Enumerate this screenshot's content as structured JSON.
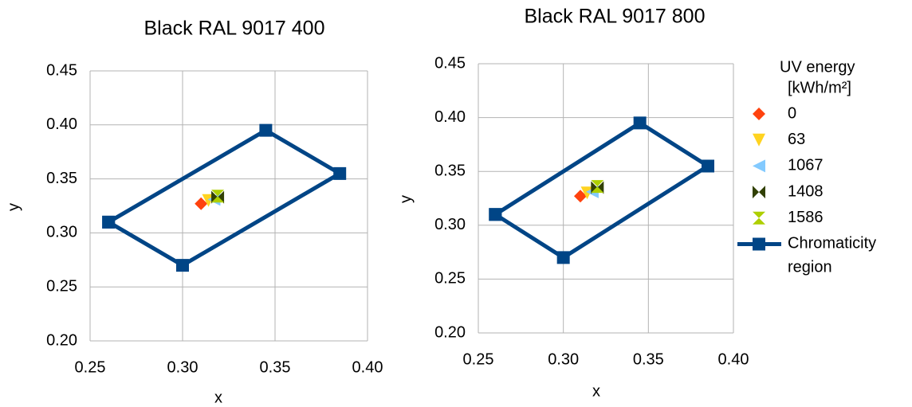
{
  "chart_data": [
    {
      "type": "scatter",
      "title": "Black RAL 9017 400",
      "xlabel": "x",
      "ylabel": "y",
      "xlim": [
        0.25,
        0.4
      ],
      "ylim": [
        0.2,
        0.45
      ],
      "xticks": [
        0.25,
        {
          "value": 0.3,
          "label": "0.30"
        },
        0.35,
        {
          "value": 0.4,
          "label": "0.40"
        }
      ],
      "yticks": [
        {
          "value": 0.2,
          "label": "0.20"
        },
        0.25,
        {
          "value": 0.3,
          "label": "0.30"
        },
        0.35,
        {
          "value": 0.4,
          "label": "0.40"
        },
        0.45
      ],
      "grid": true,
      "series": [
        {
          "color": "#ff420e",
          "marker": "diamond",
          "x": [
            0.31
          ],
          "values": [
            0.327
          ]
        },
        {
          "color": "#ffd320",
          "marker": "triangle-down",
          "x": [
            0.314
          ],
          "values": [
            0.33
          ]
        },
        {
          "color": "#83caff",
          "marker": "triangle-left",
          "x": [
            0.317
          ],
          "values": [
            0.331
          ]
        },
        {
          "color": "#314004",
          "marker": "bowtie",
          "x": [
            0.319
          ],
          "values": [
            0.333
          ]
        },
        {
          "color": "#aecf00",
          "marker": "hourglass",
          "x": [
            0.319
          ],
          "values": [
            0.334
          ]
        },
        {
          "color": "#004586",
          "marker": "square",
          "line": true,
          "x": [
            0.26,
            0.3,
            0.385,
            0.345,
            0.26
          ],
          "values": [
            0.31,
            0.27,
            0.355,
            0.395,
            0.31
          ]
        }
      ]
    },
    {
      "type": "scatter",
      "title": "Black RAL 9017 800",
      "xlabel": "x",
      "ylabel": "y",
      "xlim": [
        0.25,
        0.4
      ],
      "ylim": [
        0.2,
        0.45
      ],
      "xticks": [
        0.25,
        {
          "value": 0.3,
          "label": "0.30"
        },
        0.35,
        {
          "value": 0.4,
          "label": "0.40"
        }
      ],
      "yticks": [
        {
          "value": 0.2,
          "label": "0.20"
        },
        0.25,
        {
          "value": 0.3,
          "label": "0.30"
        },
        0.35,
        {
          "value": 0.4,
          "label": "0.40"
        },
        0.45
      ],
      "grid": true,
      "legend": "right",
      "legend_title": [
        "UV energy",
        "[kWh/m²]"
      ],
      "series": [
        {
          "name": "0",
          "color": "#ff420e",
          "marker": "diamond",
          "x": [
            0.31
          ],
          "values": [
            0.327
          ]
        },
        {
          "name": "63",
          "color": "#ffd320",
          "marker": "triangle-down",
          "x": [
            0.314
          ],
          "values": [
            0.33
          ]
        },
        {
          "name": "1067",
          "color": "#83caff",
          "marker": "triangle-left",
          "x": [
            0.317
          ],
          "values": [
            0.331
          ]
        },
        {
          "name": "1408",
          "color": "#314004",
          "marker": "bowtie",
          "x": [
            0.32
          ],
          "values": [
            0.335
          ]
        },
        {
          "name": "1586",
          "color": "#aecf00",
          "marker": "hourglass",
          "x": [
            0.32
          ],
          "values": [
            0.336
          ]
        },
        {
          "name": "Chromaticity region",
          "color": "#004586",
          "marker": "square",
          "line": true,
          "x": [
            0.26,
            0.3,
            0.385,
            0.345,
            0.26
          ],
          "values": [
            0.31,
            0.27,
            0.355,
            0.395,
            0.31
          ]
        }
      ]
    }
  ]
}
